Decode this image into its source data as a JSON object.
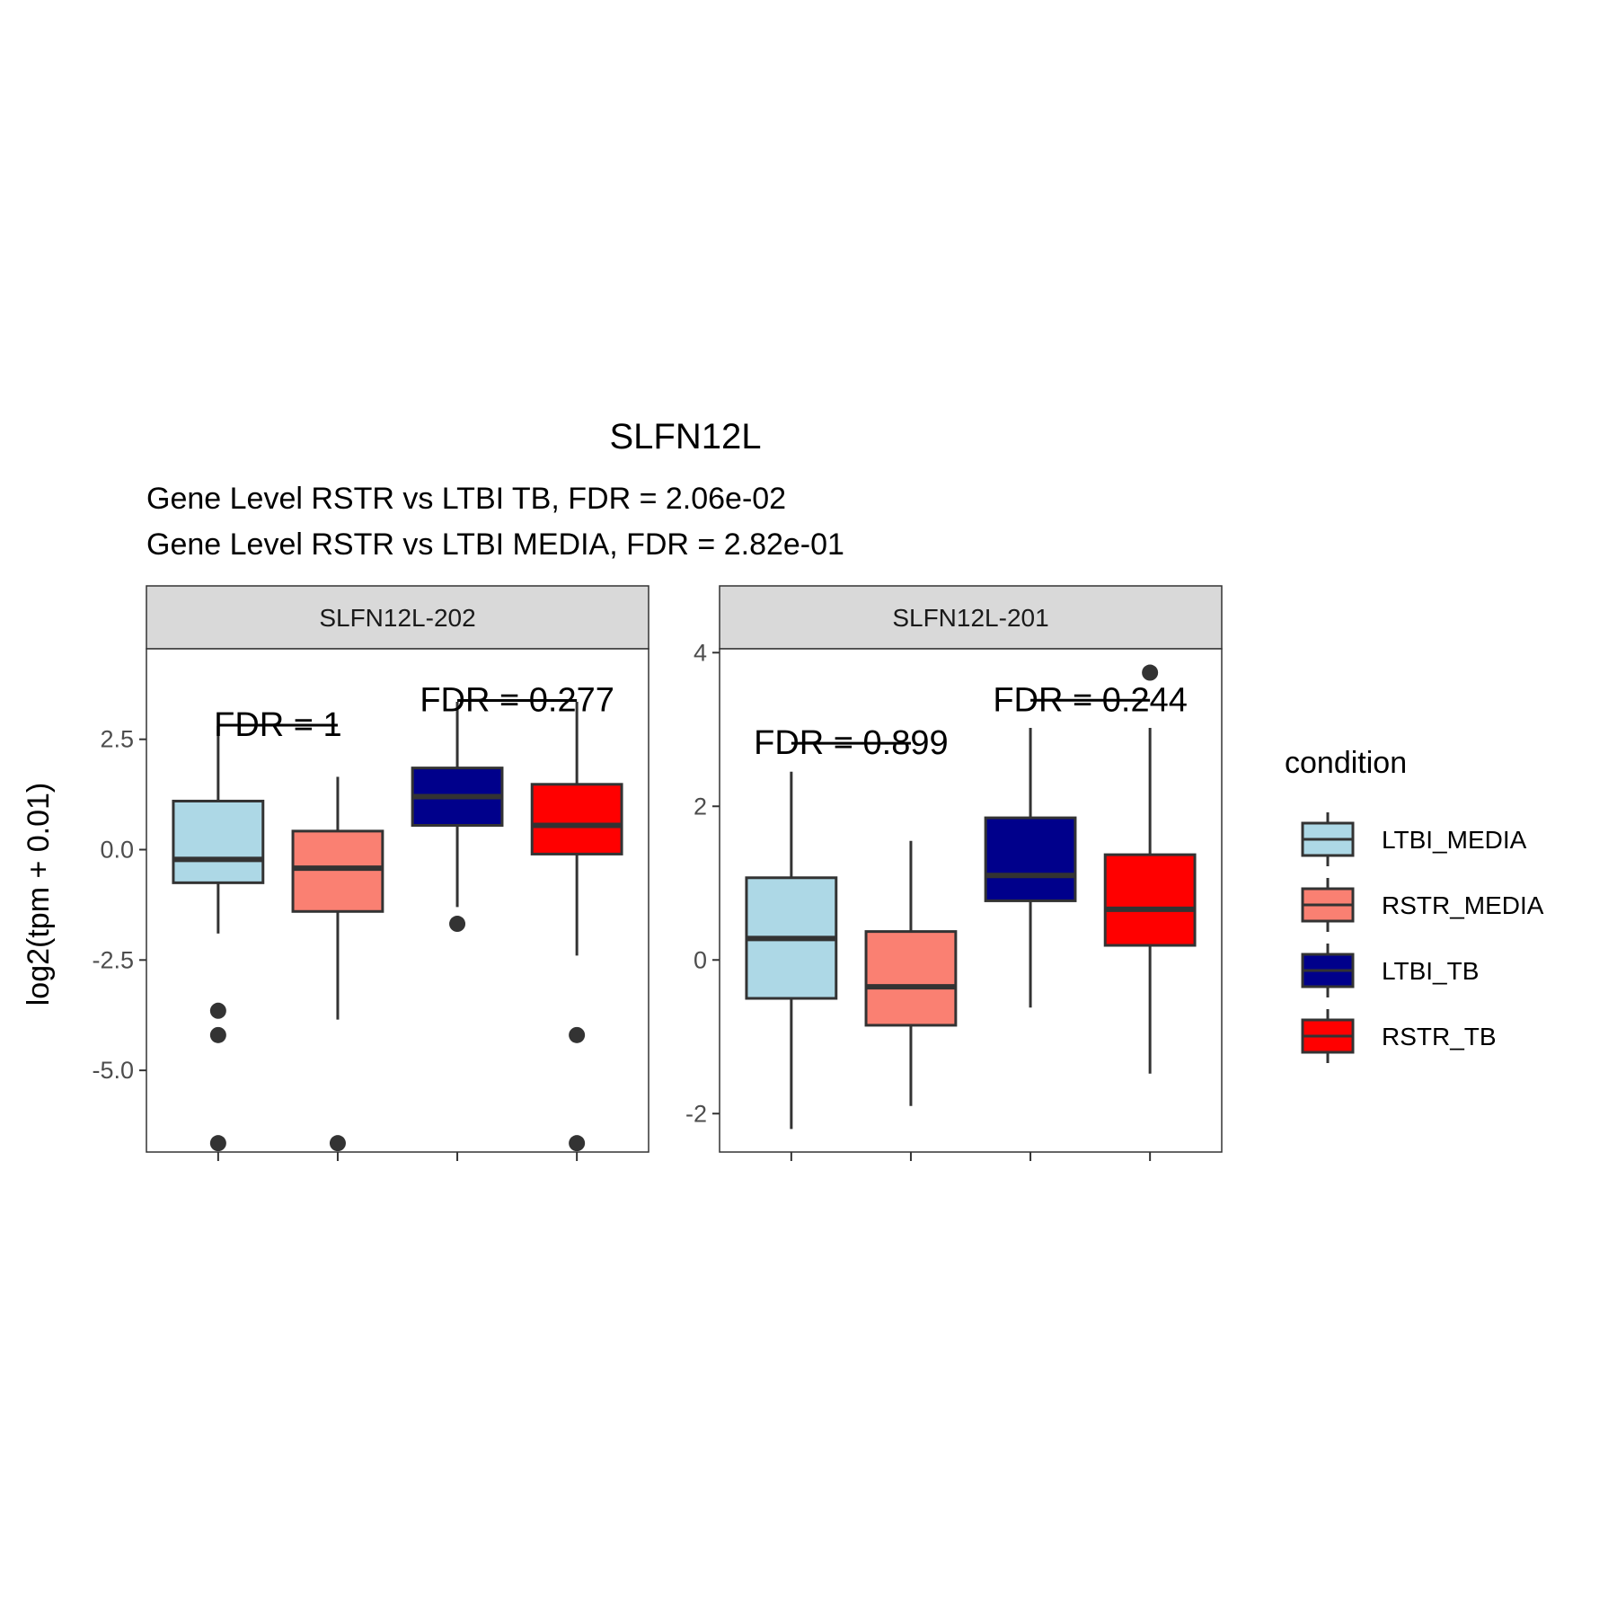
{
  "chart_data": {
    "type": "boxplot",
    "title": "SLFN12L",
    "subtitle_lines": [
      "Gene Level RSTR vs LTBI TB, FDR =  2.06e-02",
      "Gene Level RSTR vs LTBI MEDIA, FDR =  2.82e-01"
    ],
    "ylabel": "log2(tpm + 0.01)",
    "xlabel": "",
    "grid": false,
    "legend": {
      "title": "condition",
      "placement": "right",
      "entries": [
        {
          "label": "LTBI_MEDIA",
          "color": "#ADD8E6"
        },
        {
          "label": "RSTR_MEDIA",
          "color": "#FA8072"
        },
        {
          "label": "LTBI_TB",
          "color": "#00008B"
        },
        {
          "label": "RSTR_TB",
          "color": "#FF0000"
        }
      ]
    },
    "panels": [
      {
        "name": "SLFN12L-202",
        "ylim": [
          -6.85,
          4.55
        ],
        "yticks": [
          2.5,
          0.0,
          -2.5,
          -5.0
        ],
        "ytick_labels": [
          "2.5",
          "0.0",
          "-2.5",
          "-5.0"
        ],
        "boxes": [
          {
            "condition": "LTBI_MEDIA",
            "lower_whisker": -1.9,
            "q1": -0.75,
            "median": -0.22,
            "q3": 1.1,
            "upper_whisker": 2.8,
            "outliers": [
              -3.65,
              -4.2,
              -6.65
            ]
          },
          {
            "condition": "RSTR_MEDIA",
            "lower_whisker": -3.85,
            "q1": -1.4,
            "median": -0.42,
            "q3": 0.42,
            "upper_whisker": 1.65,
            "outliers": [
              -6.65
            ]
          },
          {
            "condition": "LTBI_TB",
            "lower_whisker": -1.3,
            "q1": 0.55,
            "median": 1.2,
            "q3": 1.85,
            "upper_whisker": 3.35,
            "outliers": [
              -1.68
            ]
          },
          {
            "condition": "RSTR_TB",
            "lower_whisker": -2.4,
            "q1": -0.1,
            "median": 0.55,
            "q3": 1.48,
            "upper_whisker": 3.35,
            "outliers": [
              -4.2,
              -6.65
            ]
          }
        ],
        "annotations": [
          {
            "text": "FDR =  1",
            "from": "LTBI_MEDIA",
            "to": "RSTR_MEDIA",
            "y": 2.82
          },
          {
            "text": "FDR =  0.277",
            "from": "LTBI_TB",
            "to": "RSTR_TB",
            "y": 3.38
          }
        ]
      },
      {
        "name": "SLFN12L-201",
        "ylim": [
          -2.5,
          4.05
        ],
        "yticks": [
          4,
          2,
          0,
          -2
        ],
        "ytick_labels": [
          "4",
          "2",
          "0",
          "-2"
        ],
        "boxes": [
          {
            "condition": "LTBI_MEDIA",
            "lower_whisker": -2.2,
            "q1": -0.5,
            "median": 0.28,
            "q3": 1.07,
            "upper_whisker": 2.45,
            "outliers": []
          },
          {
            "condition": "RSTR_MEDIA",
            "lower_whisker": -1.9,
            "q1": -0.85,
            "median": -0.35,
            "q3": 0.37,
            "upper_whisker": 1.55,
            "outliers": []
          },
          {
            "condition": "LTBI_TB",
            "lower_whisker": -0.62,
            "q1": 0.77,
            "median": 1.1,
            "q3": 1.85,
            "upper_whisker": 3.02,
            "outliers": []
          },
          {
            "condition": "RSTR_TB",
            "lower_whisker": -1.48,
            "q1": 0.19,
            "median": 0.66,
            "q3": 1.37,
            "upper_whisker": 3.02,
            "outliers": [
              3.74
            ]
          }
        ],
        "annotations": [
          {
            "text": "FDR =  0.899",
            "from": "LTBI_MEDIA",
            "to": "RSTR_MEDIA",
            "y": 2.82
          },
          {
            "text": "FDR =  0.244",
            "from": "LTBI_TB",
            "to": "RSTR_TB",
            "y": 3.38
          }
        ]
      }
    ]
  }
}
